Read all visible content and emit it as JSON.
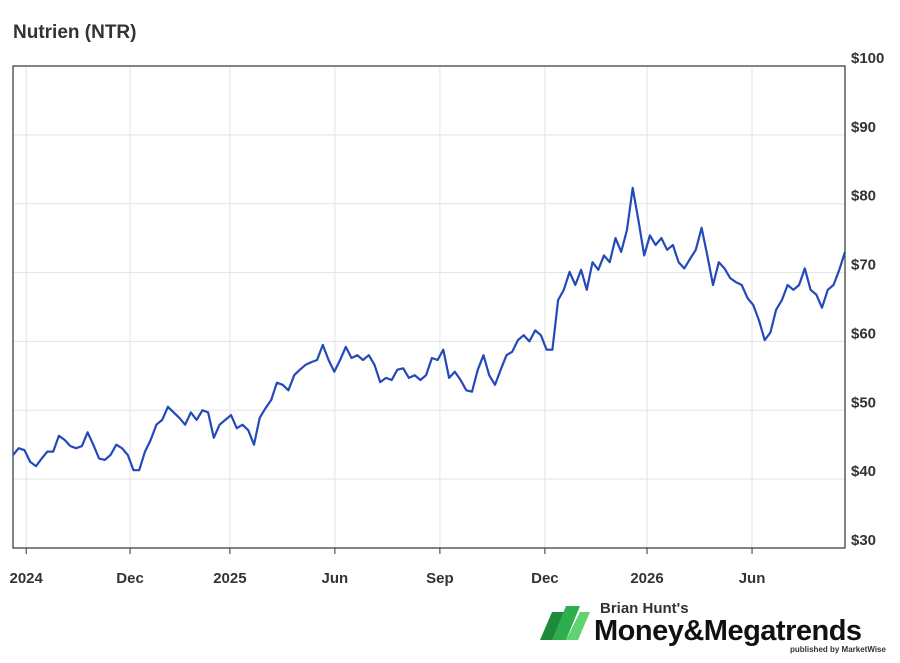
{
  "chart_data": {
    "type": "line",
    "title": "Nutrien (NTR)",
    "series": [
      {
        "name": "NTR",
        "color": "#2449b9",
        "values": [
          43.5,
          44.5,
          44.2,
          42.5,
          41.9,
          43,
          44,
          44,
          46.3,
          45.7,
          44.8,
          44.5,
          44.8,
          46.8,
          45,
          43,
          42.8,
          43.5,
          45,
          44.5,
          43.5,
          41.3,
          41.3,
          44,
          45.7,
          47.9,
          48.6,
          50.5,
          49.7,
          48.9,
          47.9,
          49.7,
          48.6,
          50,
          49.7,
          46,
          47.9,
          48.6,
          49.3,
          47.4,
          47.9,
          47.1,
          45,
          48.9,
          50.3,
          51.5,
          54,
          53.7,
          52.9,
          55.1,
          55.9,
          56.6,
          57,
          57.3,
          59.5,
          57.3,
          55.6,
          57.3,
          59.2,
          57.6,
          58,
          57.3,
          58,
          56.6,
          54.1,
          54.7,
          54.4,
          55.9,
          56.1,
          54.7,
          55.1,
          54.4,
          55.1,
          57.6,
          57.3,
          58.8,
          54.7,
          55.6,
          54.4,
          52.9,
          52.7,
          55.9,
          58,
          55.1,
          53.7,
          55.9,
          58,
          58.5,
          60.2,
          60.9,
          60,
          61.6,
          60.9,
          58.8,
          58.8,
          66,
          67.5,
          70.1,
          68.2,
          70.4,
          67.5,
          71.5,
          70.4,
          72.5,
          71.5,
          75,
          73,
          76.2,
          82.3,
          77.6,
          72.5,
          75.4,
          74,
          75,
          73.3,
          74,
          71.5,
          70.6,
          72,
          73.3,
          76.5,
          72.5,
          68.2,
          71.5,
          70.6,
          69.2,
          68.6,
          68.2,
          66.3,
          65.3,
          63.1,
          60.2,
          61.3,
          64.6,
          66,
          68.2,
          67.5,
          68.2,
          70.6,
          67.5,
          66.8,
          64.9,
          67.5,
          68.2,
          70.4,
          73
        ]
      }
    ],
    "xlim": [
      0,
      145
    ],
    "xticks": [
      {
        "value": 2.3,
        "label": "2024"
      },
      {
        "value": 20.4,
        "label": "Dec"
      },
      {
        "value": 37.8,
        "label": "2025"
      },
      {
        "value": 56.1,
        "label": "Jun"
      },
      {
        "value": 74.4,
        "label": "Sep"
      },
      {
        "value": 92.7,
        "label": "Dec"
      },
      {
        "value": 110.5,
        "label": "2026"
      },
      {
        "value": 128.8,
        "label": "Jun"
      }
    ],
    "ylim": [
      30,
      100
    ],
    "yticks": [
      {
        "value": 30,
        "label": "$30"
      },
      {
        "value": 40,
        "label": "$40"
      },
      {
        "value": 50,
        "label": "$50"
      },
      {
        "value": 60,
        "label": "$60"
      },
      {
        "value": 70,
        "label": "$70"
      },
      {
        "value": 80,
        "label": "$80"
      },
      {
        "value": 90,
        "label": "$90"
      },
      {
        "value": 100,
        "label": "$100"
      }
    ],
    "grid": true
  },
  "branding": {
    "byline": "Brian Hunt's",
    "name": "Money&Megatrends",
    "publisher": "published by MarketWise"
  }
}
